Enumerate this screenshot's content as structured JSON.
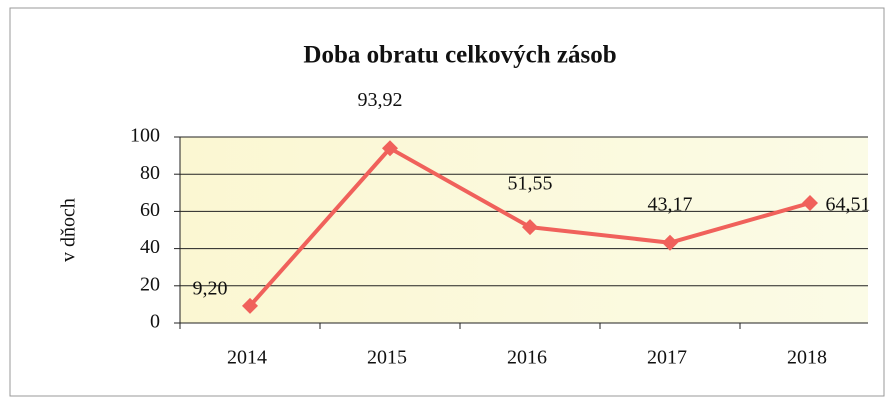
{
  "chart_data": {
    "type": "line",
    "title": "Doba obratu celkových zásob",
    "y_label": "v dňoch",
    "categories": [
      "2014",
      "2015",
      "2016",
      "2017",
      "2018"
    ],
    "values": [
      9.2,
      93.92,
      51.55,
      43.17,
      64.51
    ],
    "value_labels": [
      "9,20",
      "93,92",
      "51,55",
      "43,17",
      "64,51"
    ],
    "color": "#f0615b",
    "ylim": [
      0,
      100
    ],
    "yticks": [
      0,
      20,
      40,
      60,
      80,
      100
    ],
    "grid": true
  }
}
